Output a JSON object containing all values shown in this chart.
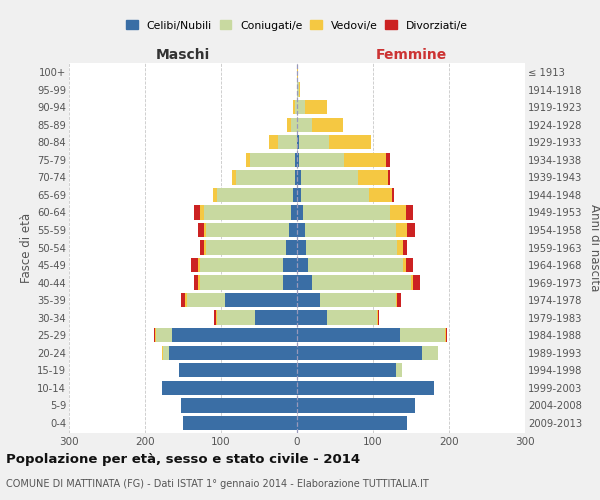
{
  "age_groups": [
    "0-4",
    "5-9",
    "10-14",
    "15-19",
    "20-24",
    "25-29",
    "30-34",
    "35-39",
    "40-44",
    "45-49",
    "50-54",
    "55-59",
    "60-64",
    "65-69",
    "70-74",
    "75-79",
    "80-84",
    "85-89",
    "90-94",
    "95-99",
    "100+"
  ],
  "birth_years": [
    "2009-2013",
    "2004-2008",
    "1999-2003",
    "1994-1998",
    "1989-1993",
    "1984-1988",
    "1979-1983",
    "1974-1978",
    "1969-1973",
    "1964-1968",
    "1959-1963",
    "1954-1958",
    "1949-1953",
    "1944-1948",
    "1939-1943",
    "1934-1938",
    "1929-1933",
    "1924-1928",
    "1919-1923",
    "1914-1918",
    "≤ 1913"
  ],
  "male": {
    "celibe": [
      150,
      152,
      178,
      155,
      168,
      165,
      55,
      95,
      18,
      18,
      15,
      10,
      8,
      5,
      2,
      2,
      0,
      0,
      0,
      0,
      0
    ],
    "coniugato": [
      0,
      0,
      0,
      0,
      8,
      20,
      50,
      50,
      110,
      110,
      105,
      110,
      115,
      100,
      78,
      60,
      25,
      8,
      2,
      0,
      0
    ],
    "vedovo": [
      0,
      0,
      0,
      0,
      1,
      2,
      2,
      2,
      2,
      2,
      2,
      2,
      5,
      5,
      5,
      5,
      12,
      5,
      3,
      0,
      0
    ],
    "divorziato": [
      0,
      0,
      0,
      0,
      0,
      1,
      2,
      5,
      5,
      10,
      5,
      8,
      8,
      0,
      0,
      0,
      0,
      0,
      0,
      0,
      0
    ]
  },
  "female": {
    "nubile": [
      145,
      155,
      180,
      130,
      165,
      135,
      40,
      30,
      20,
      15,
      12,
      10,
      8,
      5,
      5,
      2,
      2,
      0,
      0,
      0,
      0
    ],
    "coniugata": [
      0,
      0,
      0,
      8,
      20,
      60,
      65,
      100,
      130,
      125,
      120,
      120,
      115,
      90,
      75,
      60,
      40,
      20,
      10,
      2,
      0
    ],
    "vedova": [
      0,
      0,
      0,
      0,
      0,
      1,
      1,
      2,
      2,
      3,
      8,
      15,
      20,
      30,
      40,
      55,
      55,
      40,
      30,
      2,
      1
    ],
    "divorziata": [
      0,
      0,
      0,
      0,
      0,
      1,
      2,
      5,
      10,
      10,
      5,
      10,
      10,
      2,
      3,
      5,
      0,
      0,
      0,
      0,
      0
    ]
  },
  "colors": {
    "celibe": "#3a6ea5",
    "coniugato": "#c8d9a0",
    "vedovo": "#f5c842",
    "divorziato": "#cc2222"
  },
  "legend_labels": [
    "Celibi/Nubili",
    "Coniugati/e",
    "Vedovi/e",
    "Divorziati/e"
  ],
  "title": "Popolazione per età, sesso e stato civile - 2014",
  "subtitle": "COMUNE DI MATTINATA (FG) - Dati ISTAT 1° gennaio 2014 - Elaborazione TUTTITALIA.IT",
  "xlabel_left": "Maschi",
  "xlabel_right": "Femmine",
  "ylabel_left": "Fasce di età",
  "ylabel_right": "Anni di nascita",
  "xlim": 300,
  "bg_color": "#f0f0f0",
  "plot_bg_color": "#ffffff",
  "grid_color": "#c8c8c8"
}
